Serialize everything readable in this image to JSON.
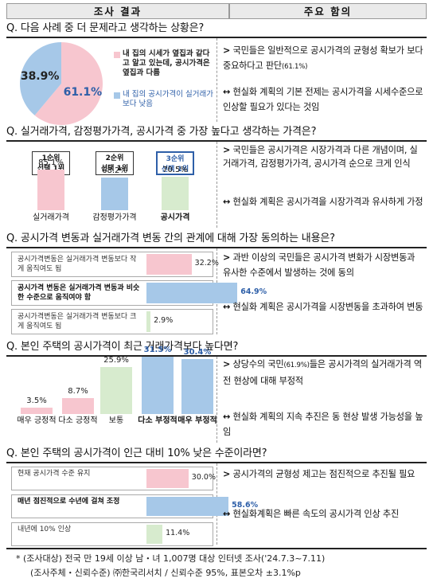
{
  "header": {
    "left": "조사 결과",
    "right": "주요 함의"
  },
  "colors": {
    "pink": "#f7c6cf",
    "blue": "#a6c8e8",
    "green": "#d7ebce",
    "blue_text": "#2e5fa8"
  },
  "chart_data": [
    {
      "type": "pie",
      "question": "Q. 다음 사례 중 더 문제라고 생각하는 상황은?",
      "slices": [
        {
          "label": "내 집의 시세가 옆집과 같다고 알고 있는데, 공시가격은 옆집과 다름",
          "value": 61.1,
          "display": "61.1%",
          "color": "#f7c6cf"
        },
        {
          "label": "내 집의 공시가격이 실거래가보다 낮음",
          "value": 38.9,
          "display": "38.9%",
          "color": "#a6c8e8"
        }
      ],
      "notes": [
        {
          "arrow": ">",
          "text": "국민들은 일반적으로 공시가격의 균형성 확보가 보다 중요하다고 판단",
          "small": "(61.1%)"
        },
        {
          "arrow": "↔",
          "text": "현실화 계획의 기본 전제는 공시가격을 시세수준으로 인상할 필요가 있다는 것임",
          "small": ""
        }
      ]
    },
    {
      "type": "bar",
      "question": "Q. 실거래가격, 감정평가가격, 공시가격 중 가장 높다고 생각하는 가격은?",
      "categories": [
        "실거래가격",
        "감정평가가격",
        "공시가격"
      ],
      "values": [
        85.1,
        68.2,
        70.5
      ],
      "display": [
        "85.1%",
        "68.2%",
        "70.5%"
      ],
      "ranks": [
        "1순위\n선택 1위",
        "2순위\n선택 1위",
        "3순위\n선택 1위"
      ],
      "ylim": [
        0,
        100
      ],
      "notes": [
        {
          "arrow": ">",
          "text": "국민들은 공시가격은 시장가격과 다른 개념이며, 실거래가격, 감정평가가격, 공시가격 순으로 크게 인식"
        },
        {
          "arrow": "↔",
          "text": "현실화 계획은 공시가격을 시장가격과 유사하게 가정"
        }
      ]
    },
    {
      "type": "bar",
      "orientation": "horizontal",
      "question": "Q. 공시가격 변동과 실거래가격 변동 간의 관계에 대해 가장 동의하는 내용은?",
      "categories": [
        "공시가격변동은 실거래가격 변동보다 작게 움직여도 됨",
        "공시가격 변동은 실거래가격 변동과 비슷한 수준으로 움직여야 함",
        "공시가격변동은 실거래가격 변동보다 크게 움직여도 됨"
      ],
      "values": [
        32.2,
        64.9,
        2.9
      ],
      "display": [
        "32.2%",
        "64.9%",
        "2.9%"
      ],
      "xlim": [
        0,
        100
      ],
      "notes": [
        {
          "arrow": ">",
          "text": "과반 이상의 국민들은 공시가격 변화가 시장변동과 유사한 수준에서 발생하는 것에 동의"
        },
        {
          "arrow": "↔",
          "text": "현실화 계획은 공시가격을 시장변동을 초과하여 변동"
        }
      ]
    },
    {
      "type": "bar",
      "question": "Q. 본인 주택의 공시가격이 최근 거래가격보다 높다면?",
      "categories": [
        "매우 긍정적",
        "다소 긍정적",
        "보통",
        "다소 부정적",
        "매우 부정적"
      ],
      "values": [
        3.5,
        8.7,
        25.9,
        31.5,
        30.4
      ],
      "display": [
        "3.5%",
        "8.7%",
        "25.9%",
        "31.5%",
        "30.4%"
      ],
      "ylim": [
        0,
        35
      ],
      "notes": [
        {
          "arrow": ">",
          "text": "상당수의 국민",
          "small": "(61.9%)",
          "text2": "들은 공시가격의 실거래가격 역전 현상에 대해 부정적"
        },
        {
          "arrow": "↔",
          "text": "현실화 계획의 지속 추진은 동 현상 발생 가능성을 높임"
        }
      ]
    },
    {
      "type": "bar",
      "orientation": "horizontal",
      "question": "Q. 본인 주택의 공시가격이 인근 대비 10% 낮은 수준이라면?",
      "categories": [
        "현재 공시가격 수준 유지",
        "매년 점진적으로 수년에 걸쳐 조정",
        "내년에 10% 인상"
      ],
      "values": [
        30.0,
        58.6,
        11.4
      ],
      "display": [
        "30.0%",
        "58.6%",
        "11.4%"
      ],
      "xlim": [
        0,
        100
      ],
      "notes": [
        {
          "arrow": ">",
          "text": "공시가격의 균형성 제고는 점진적으로 추진될 필요"
        },
        {
          "arrow": "↔",
          "text": "현실화계획은 빠른 속도의 공시가격 인상 추진"
        }
      ]
    }
  ],
  "footer": {
    "line1": "* (조사대상) 전국 만 19세 이상 남・녀 1,007명 대상 인터넷 조사('24.7.3~7.11)",
    "line2": "(조사주체・신뢰수준) ㈜한국리서치 / 신뢰수준 95%, 표본오차 ±3.1%p"
  }
}
